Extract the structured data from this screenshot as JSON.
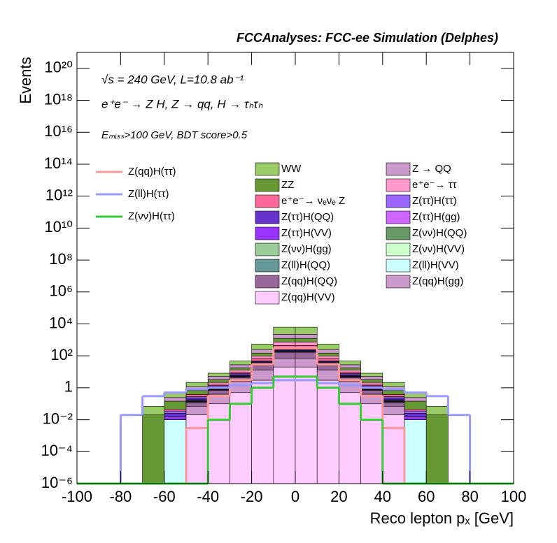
{
  "chart_data": {
    "type": "stacked_histogram",
    "title": "FCCAnalyses: FCC-ee Simulation (Delphes)",
    "annotations": [
      "√s = 240 GeV, L=10.8 ab⁻¹",
      "e⁺e⁻ → Z H, Z → qq, H → τₕτₕ",
      "Eₘᵢₛₛ>100 GeV, BDT score>0.5"
    ],
    "x_label": "Reco lepton pₓ [GeV]",
    "y_label": "Events",
    "log_y": true,
    "xlim": [
      -100,
      100
    ],
    "ylim": [
      1e-06,
      1e+21
    ],
    "xticks": [
      -100,
      -80,
      -60,
      -40,
      -20,
      0,
      20,
      40,
      60,
      80,
      100
    ],
    "yticks": [
      {
        "value": 1e-06,
        "label": "10⁻⁶"
      },
      {
        "value": 0.0001,
        "label": "10⁻⁴"
      },
      {
        "value": 0.01,
        "label": "10⁻²"
      },
      1,
      {
        "value": 100,
        "label": "10²"
      },
      {
        "value": 10000.0,
        "label": "10⁴"
      },
      {
        "value": 1000000.0,
        "label": "10⁶"
      },
      {
        "value": 100000000.0,
        "label": "10⁸"
      },
      {
        "value": 10000000000.0,
        "label": "10¹⁰"
      },
      {
        "value": 1000000000000.0,
        "label": "10¹²"
      },
      {
        "value": 100000000000000.0,
        "label": "10¹⁴"
      },
      {
        "value": 1e+16,
        "label": "10¹⁶"
      },
      {
        "value": 1e+18,
        "label": "10¹⁸"
      },
      {
        "value": 1e+20,
        "label": "10²⁰"
      }
    ],
    "bins": [
      -100,
      -90,
      -80,
      -70,
      -60,
      -50,
      -40,
      -30,
      -20,
      -10,
      0,
      10,
      20,
      30,
      40,
      50,
      60,
      70,
      80,
      90,
      100
    ],
    "series": [
      {
        "name": "WW",
        "color": "#99cc66",
        "values": [
          0,
          0,
          0,
          0.05,
          0.3,
          1,
          3,
          20,
          300,
          4000,
          4000,
          300,
          20,
          3,
          1,
          0.3,
          0.05,
          0,
          0,
          0
        ]
      },
      {
        "name": "Z → QQ",
        "color": "#cc99cc",
        "values": [
          0,
          0,
          0,
          0,
          0.1,
          0.5,
          2,
          10,
          100,
          1000,
          1000,
          100,
          10,
          2,
          0.5,
          0.1,
          0,
          0,
          0,
          0
        ]
      },
      {
        "name": "ZZ",
        "color": "#669933",
        "values": [
          0,
          0,
          0,
          0.02,
          0.1,
          0.3,
          1,
          5,
          50,
          500,
          500,
          50,
          5,
          1,
          0.3,
          0.1,
          0.02,
          0,
          0,
          0
        ]
      },
      {
        "name": "e⁺e⁻→ ττ",
        "color": "#ff99cc",
        "values": [
          0,
          0,
          0,
          0,
          0,
          0,
          0.5,
          3,
          30,
          300,
          300,
          30,
          3,
          0.5,
          0,
          0,
          0,
          0,
          0,
          0
        ]
      },
      {
        "name": "e⁺e⁻→ νₑνₑ Z",
        "color": "#ff6699",
        "values": [
          0,
          0,
          0,
          0,
          0.01,
          0.1,
          0.3,
          2,
          20,
          200,
          200,
          20,
          2,
          0.3,
          0.1,
          0.01,
          0,
          0,
          0,
          0
        ]
      },
      {
        "name": "Z(ττ)H(ττ)",
        "color": "#9966ff",
        "values": [
          0,
          0,
          0,
          0,
          0.01,
          0.05,
          0.2,
          1,
          5,
          20,
          20,
          5,
          1,
          0.2,
          0.05,
          0.01,
          0,
          0,
          0,
          0
        ]
      },
      {
        "name": "Z(ττ)H(QQ)",
        "color": "#6633cc",
        "values": [
          0,
          0,
          0,
          0,
          0.01,
          0.05,
          0.2,
          1,
          5,
          30,
          30,
          5,
          1,
          0.2,
          0.05,
          0.01,
          0,
          0,
          0,
          0
        ]
      },
      {
        "name": "Z(ττ)H(gg)",
        "color": "#cc66ff",
        "values": [
          0,
          0,
          0,
          0,
          0,
          0.01,
          0.05,
          0.2,
          1,
          5,
          5,
          1,
          0.2,
          0.05,
          0.01,
          0,
          0,
          0,
          0,
          0
        ]
      },
      {
        "name": "Z(ττ)H(VV)",
        "color": "#9933ff",
        "values": [
          0,
          0,
          0,
          0,
          0.005,
          0.02,
          0.1,
          0.5,
          2,
          10,
          10,
          2,
          0.5,
          0.1,
          0.02,
          0.005,
          0,
          0,
          0,
          0
        ]
      },
      {
        "name": "Z(νν)H(QQ)",
        "color": "#669966",
        "values": [
          0,
          0,
          0,
          0,
          0,
          0.01,
          0.05,
          0.2,
          1,
          3,
          3,
          1,
          0.2,
          0.05,
          0.01,
          0,
          0,
          0,
          0,
          0
        ]
      },
      {
        "name": "Z(νν)H(gg)",
        "color": "#99cc99",
        "values": [
          0,
          0,
          0,
          0,
          0,
          0,
          0.01,
          0.05,
          0.2,
          0.5,
          0.5,
          0.2,
          0.05,
          0.01,
          0,
          0,
          0,
          0,
          0,
          0
        ]
      },
      {
        "name": "Z(νν)H(VV)",
        "color": "#ccffcc",
        "values": [
          0,
          0,
          0,
          0,
          0,
          0,
          0.01,
          0.05,
          0.2,
          0.5,
          0.5,
          0.2,
          0.05,
          0.01,
          0,
          0,
          0,
          0,
          0,
          0
        ]
      },
      {
        "name": "Z(ll)H(QQ)",
        "color": "#669999",
        "values": [
          0,
          0,
          0,
          0,
          0,
          0.01,
          0.05,
          0.2,
          1,
          3,
          3,
          1,
          0.2,
          0.05,
          0.01,
          0,
          0,
          0,
          0,
          0
        ]
      },
      {
        "name": "Z(ll)H(VV)",
        "color": "#ccffff",
        "values": [
          0,
          0,
          0,
          0,
          0.01,
          0.01,
          0.02,
          0.03,
          0.03,
          0.03,
          0.03,
          0.03,
          0.03,
          0.02,
          0.01,
          0.01,
          0,
          0,
          0,
          0
        ]
      },
      {
        "name": "Z(qq)H(QQ)",
        "color": "#996699",
        "values": [
          0,
          0,
          0,
          0,
          0,
          0.05,
          0.3,
          2,
          20,
          100,
          100,
          20,
          2,
          0.3,
          0.05,
          0,
          0,
          0,
          0,
          0
        ]
      },
      {
        "name": "Z(qq)H(gg)",
        "color": "#cc99cc",
        "values": [
          0,
          0,
          0,
          0,
          0,
          0.05,
          0.3,
          2,
          10,
          50,
          50,
          10,
          2,
          0.3,
          0.05,
          0,
          0,
          0,
          0,
          0
        ]
      },
      {
        "name": "Z(qq)H(VV)",
        "color": "#ffccff",
        "values": [
          0,
          0,
          0,
          0,
          0,
          0.02,
          0.1,
          0.5,
          3,
          20,
          20,
          3,
          0.5,
          0.1,
          0.02,
          0,
          0,
          0,
          0,
          0
        ]
      }
    ],
    "signals": [
      {
        "name": "Z(qq)H(ττ)",
        "color": "#ff9999",
        "values": [
          0,
          0,
          0,
          0,
          0,
          0.003,
          0.3,
          3,
          30,
          300,
          300,
          30,
          3,
          0.3,
          0.003,
          0,
          0,
          0,
          0,
          0
        ]
      },
      {
        "name": "Z(ll)H(ττ)",
        "color": "#9999ff",
        "values": [
          0,
          0,
          0.02,
          0.3,
          0.5,
          0.8,
          1,
          1.5,
          2,
          3,
          3,
          2,
          1.5,
          1,
          0.8,
          0.5,
          0.3,
          0.02,
          0,
          0
        ]
      },
      {
        "name": "Z(νν)H(ττ)",
        "color": "#33cc33",
        "values": [
          0,
          0,
          0,
          0,
          0,
          0,
          0.01,
          0.1,
          1,
          5,
          5,
          1,
          0.1,
          0.01,
          0,
          0,
          0,
          0,
          0,
          0
        ]
      }
    ]
  }
}
